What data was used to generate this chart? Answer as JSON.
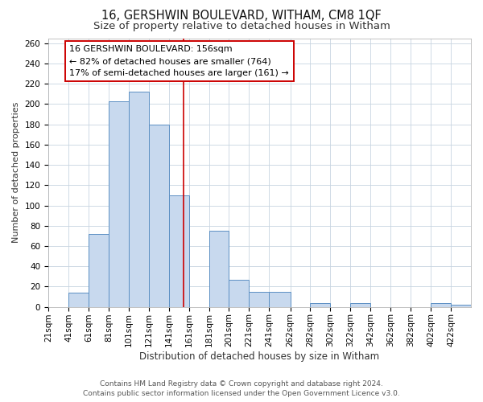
{
  "title": "16, GERSHWIN BOULEVARD, WITHAM, CM8 1QF",
  "subtitle": "Size of property relative to detached houses in Witham",
  "xlabel": "Distribution of detached houses by size in Witham",
  "ylabel": "Number of detached properties",
  "bar_labels": [
    "21sqm",
    "41sqm",
    "61sqm",
    "81sqm",
    "101sqm",
    "121sqm",
    "141sqm",
    "161sqm",
    "181sqm",
    "201sqm",
    "221sqm",
    "241sqm",
    "262sqm",
    "282sqm",
    "302sqm",
    "322sqm",
    "342sqm",
    "362sqm",
    "382sqm",
    "402sqm",
    "422sqm"
  ],
  "bar_values": [
    0,
    14,
    72,
    203,
    212,
    180,
    110,
    0,
    75,
    27,
    15,
    15,
    0,
    4,
    0,
    4,
    0,
    0,
    0,
    4,
    2
  ],
  "bin_edges": [
    21,
    41,
    61,
    81,
    101,
    121,
    141,
    161,
    181,
    201,
    221,
    241,
    262,
    282,
    302,
    322,
    342,
    362,
    382,
    402,
    422,
    442
  ],
  "bar_color": "#c8d9ee",
  "bar_edge_color": "#5b8fc3",
  "vline_x": 156,
  "vline_color": "#cc0000",
  "annotation_text": "16 GERSHWIN BOULEVARD: 156sqm\n← 82% of detached houses are smaller (764)\n17% of semi-detached houses are larger (161) →",
  "annotation_box_facecolor": "#ffffff",
  "annotation_box_edgecolor": "#cc0000",
  "ylim": [
    0,
    265
  ],
  "yticks": [
    0,
    20,
    40,
    60,
    80,
    100,
    120,
    140,
    160,
    180,
    200,
    220,
    240,
    260
  ],
  "footer_line1": "Contains HM Land Registry data © Crown copyright and database right 2024.",
  "footer_line2": "Contains public sector information licensed under the Open Government Licence v3.0.",
  "bg_color": "#ffffff",
  "plot_bg_color": "#ffffff",
  "grid_color": "#c8d4e0",
  "title_fontsize": 10.5,
  "subtitle_fontsize": 9.5,
  "xlabel_fontsize": 8.5,
  "ylabel_fontsize": 8,
  "tick_fontsize": 7.5,
  "footer_fontsize": 6.5,
  "annotation_fontsize": 8
}
